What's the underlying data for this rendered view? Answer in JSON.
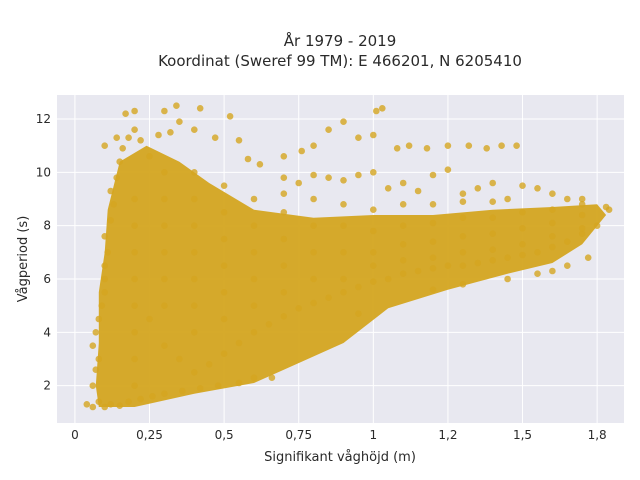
{
  "chart_data": {
    "type": "scatter",
    "title_line1": "År 1979 - 2019",
    "title_line2": "Koordinat (Sweref 99 TM): E 466201, N 6205410",
    "xlabel": "Signifikant våghöjd (m)",
    "ylabel": "Vågperiod (s)",
    "xlim": [
      -0.06,
      1.84
    ],
    "ylim": [
      0.6,
      12.9
    ],
    "x_ticks": [
      {
        "value": 0,
        "label": "0"
      },
      {
        "value": 0.25,
        "label": "0,25"
      },
      {
        "value": 0.5,
        "label": "0,5"
      },
      {
        "value": 0.75,
        "label": "0,75"
      },
      {
        "value": 1,
        "label": "1"
      },
      {
        "value": 1.25,
        "label": "1,2"
      },
      {
        "value": 1.5,
        "label": "1,5"
      },
      {
        "value": 1.75,
        "label": "1,8"
      }
    ],
    "y_ticks": [
      {
        "value": 2,
        "label": "2"
      },
      {
        "value": 4,
        "label": "4"
      },
      {
        "value": 6,
        "label": "6"
      },
      {
        "value": 8,
        "label": "8"
      },
      {
        "value": 10,
        "label": "10"
      },
      {
        "value": 12,
        "label": "12"
      }
    ],
    "grid": true,
    "colors": {
      "marker": "#d4a520",
      "plot_bg": "#e8e8f0",
      "grid": "#ffffff"
    },
    "series": [
      {
        "points": [
          [
            0.04,
            1.3
          ],
          [
            0.06,
            1.2
          ],
          [
            0.08,
            1.4
          ],
          [
            0.1,
            1.2
          ],
          [
            0.12,
            1.3
          ],
          [
            0.15,
            1.25
          ],
          [
            0.18,
            1.4
          ],
          [
            0.22,
            1.5
          ],
          [
            0.26,
            1.6
          ],
          [
            0.3,
            1.7
          ],
          [
            0.36,
            1.8
          ],
          [
            0.42,
            1.9
          ],
          [
            0.48,
            2.0
          ],
          [
            0.55,
            2.1
          ],
          [
            0.6,
            2.3
          ],
          [
            0.66,
            2.3
          ],
          [
            0.06,
            2.0
          ],
          [
            0.07,
            2.6
          ],
          [
            0.08,
            3.0
          ],
          [
            0.06,
            3.5
          ],
          [
            0.07,
            4.0
          ],
          [
            0.08,
            4.5
          ],
          [
            0.09,
            5.0
          ],
          [
            0.1,
            5.5
          ],
          [
            0.1,
            6.0
          ],
          [
            0.1,
            6.5
          ],
          [
            0.11,
            7.0
          ],
          [
            0.1,
            7.6
          ],
          [
            0.12,
            8.2
          ],
          [
            0.13,
            8.8
          ],
          [
            0.12,
            9.3
          ],
          [
            0.14,
            9.8
          ],
          [
            0.15,
            10.4
          ],
          [
            0.16,
            10.9
          ],
          [
            0.18,
            11.3
          ],
          [
            0.2,
            11.6
          ],
          [
            0.22,
            11.2
          ],
          [
            0.25,
            10.6
          ],
          [
            0.28,
            11.4
          ],
          [
            0.32,
            11.5
          ],
          [
            0.35,
            11.9
          ],
          [
            0.4,
            11.6
          ],
          [
            0.1,
            11.0
          ],
          [
            0.14,
            11.3
          ],
          [
            0.17,
            12.2
          ],
          [
            0.2,
            12.3
          ],
          [
            0.3,
            12.3
          ],
          [
            0.34,
            12.5
          ],
          [
            0.42,
            12.4
          ],
          [
            0.47,
            11.3
          ],
          [
            0.55,
            11.2
          ],
          [
            0.52,
            12.1
          ],
          [
            0.58,
            10.5
          ],
          [
            0.62,
            10.3
          ],
          [
            0.7,
            10.6
          ],
          [
            0.76,
            10.8
          ],
          [
            0.8,
            11.0
          ],
          [
            0.85,
            11.6
          ],
          [
            0.9,
            11.9
          ],
          [
            0.95,
            11.3
          ],
          [
            1.0,
            11.4
          ],
          [
            1.01,
            12.3
          ],
          [
            1.03,
            12.4
          ],
          [
            1.08,
            10.9
          ],
          [
            1.12,
            11.0
          ],
          [
            1.18,
            10.9
          ],
          [
            1.25,
            11.0
          ],
          [
            1.32,
            11.0
          ],
          [
            1.38,
            10.9
          ],
          [
            1.43,
            11.0
          ],
          [
            1.48,
            11.0
          ],
          [
            0.7,
            9.8
          ],
          [
            0.75,
            9.6
          ],
          [
            0.8,
            9.9
          ],
          [
            0.85,
            9.8
          ],
          [
            0.9,
            9.7
          ],
          [
            0.95,
            9.9
          ],
          [
            1.0,
            10.0
          ],
          [
            1.05,
            9.4
          ],
          [
            1.1,
            9.6
          ],
          [
            1.15,
            9.3
          ],
          [
            1.2,
            9.9
          ],
          [
            1.25,
            10.1
          ],
          [
            1.3,
            9.2
          ],
          [
            1.35,
            9.4
          ],
          [
            1.4,
            9.6
          ],
          [
            1.45,
            9.0
          ],
          [
            1.5,
            9.5
          ],
          [
            1.55,
            9.4
          ],
          [
            1.6,
            9.2
          ],
          [
            1.65,
            9.0
          ],
          [
            1.7,
            9.0
          ],
          [
            0.2,
            4.0
          ],
          [
            0.25,
            4.5
          ],
          [
            0.3,
            3.5
          ],
          [
            0.35,
            3.0
          ],
          [
            0.4,
            2.5
          ],
          [
            0.45,
            2.8
          ],
          [
            0.5,
            3.2
          ],
          [
            0.55,
            3.6
          ],
          [
            0.6,
            4.0
          ],
          [
            0.65,
            4.3
          ],
          [
            0.7,
            4.6
          ],
          [
            0.75,
            4.9
          ],
          [
            0.8,
            5.1
          ],
          [
            0.85,
            5.3
          ],
          [
            0.9,
            5.5
          ],
          [
            0.95,
            5.7
          ],
          [
            1.0,
            5.9
          ],
          [
            1.05,
            6.0
          ],
          [
            1.1,
            6.2
          ],
          [
            1.15,
            6.3
          ],
          [
            1.2,
            6.4
          ],
          [
            1.25,
            6.5
          ],
          [
            1.3,
            6.5
          ],
          [
            1.35,
            6.6
          ],
          [
            1.4,
            6.7
          ],
          [
            1.45,
            6.8
          ],
          [
            1.5,
            6.9
          ],
          [
            1.55,
            7.0
          ],
          [
            1.6,
            7.2
          ],
          [
            1.65,
            7.4
          ],
          [
            1.7,
            7.7
          ],
          [
            1.75,
            8.0
          ],
          [
            1.79,
            8.6
          ],
          [
            0.95,
            4.7
          ],
          [
            1.2,
            5.6
          ],
          [
            1.3,
            5.8
          ],
          [
            1.45,
            6.0
          ],
          [
            1.55,
            6.2
          ],
          [
            1.6,
            6.3
          ],
          [
            1.65,
            6.5
          ],
          [
            1.72,
            6.8
          ],
          [
            0.2,
            2.0
          ],
          [
            0.2,
            3.0
          ],
          [
            0.2,
            5.0
          ],
          [
            0.2,
            6.0
          ],
          [
            0.2,
            7.0
          ],
          [
            0.2,
            8.0
          ],
          [
            0.2,
            9.0
          ],
          [
            0.3,
            5.0
          ],
          [
            0.3,
            6.0
          ],
          [
            0.3,
            7.0
          ],
          [
            0.3,
            8.0
          ],
          [
            0.3,
            9.0
          ],
          [
            0.3,
            10.0
          ],
          [
            0.4,
            4.0
          ],
          [
            0.4,
            5.0
          ],
          [
            0.4,
            6.0
          ],
          [
            0.4,
            7.0
          ],
          [
            0.4,
            8.0
          ],
          [
            0.4,
            9.0
          ],
          [
            0.4,
            10.0
          ],
          [
            0.5,
            4.5
          ],
          [
            0.5,
            5.5
          ],
          [
            0.5,
            6.5
          ],
          [
            0.5,
            7.5
          ],
          [
            0.5,
            8.5
          ],
          [
            0.5,
            9.5
          ],
          [
            0.6,
            5.0
          ],
          [
            0.6,
            6.0
          ],
          [
            0.6,
            7.0
          ],
          [
            0.6,
            8.0
          ],
          [
            0.6,
            9.0
          ],
          [
            0.7,
            5.5
          ],
          [
            0.7,
            6.5
          ],
          [
            0.7,
            7.5
          ],
          [
            0.7,
            8.5
          ],
          [
            0.7,
            9.2
          ],
          [
            0.8,
            6.0
          ],
          [
            0.8,
            7.0
          ],
          [
            0.8,
            8.0
          ],
          [
            0.8,
            9.0
          ],
          [
            0.9,
            6.0
          ],
          [
            0.9,
            7.0
          ],
          [
            0.9,
            8.0
          ],
          [
            0.9,
            8.8
          ],
          [
            1.0,
            6.5
          ],
          [
            1.0,
            7.0
          ],
          [
            1.0,
            7.8
          ],
          [
            1.0,
            8.6
          ],
          [
            1.1,
            6.7
          ],
          [
            1.1,
            7.3
          ],
          [
            1.1,
            8.0
          ],
          [
            1.1,
            8.8
          ],
          [
            1.2,
            6.8
          ],
          [
            1.2,
            7.4
          ],
          [
            1.2,
            8.1
          ],
          [
            1.2,
            8.8
          ],
          [
            1.3,
            7.0
          ],
          [
            1.3,
            7.6
          ],
          [
            1.3,
            8.3
          ],
          [
            1.3,
            8.9
          ],
          [
            1.4,
            7.1
          ],
          [
            1.4,
            7.7
          ],
          [
            1.4,
            8.3
          ],
          [
            1.4,
            8.9
          ],
          [
            1.5,
            7.3
          ],
          [
            1.5,
            7.9
          ],
          [
            1.5,
            8.5
          ],
          [
            1.6,
            7.6
          ],
          [
            1.6,
            8.1
          ],
          [
            1.6,
            8.6
          ],
          [
            1.7,
            7.9
          ],
          [
            1.7,
            8.4
          ],
          [
            1.7,
            8.8
          ],
          [
            1.78,
            8.7
          ]
        ]
      }
    ]
  }
}
